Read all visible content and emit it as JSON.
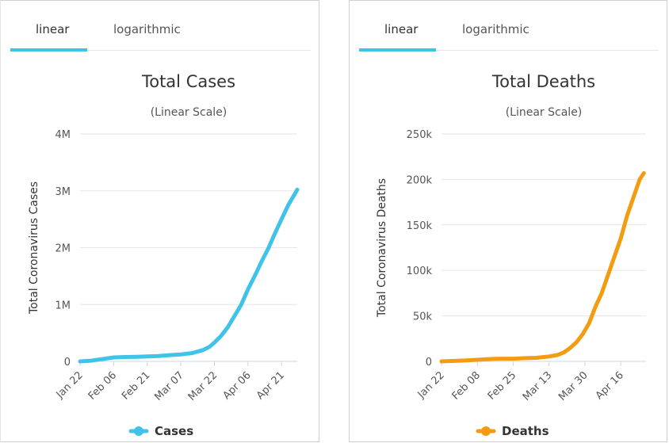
{
  "tabs": {
    "linear_label": "linear",
    "log_label": "logarithmic"
  },
  "legend_labels": {
    "cases": "Cases",
    "deaths": "Deaths"
  },
  "colors": {
    "cases": "#3fc3e8",
    "deaths": "#f39c12",
    "tab_active": "#3fc3e8"
  },
  "chart_data": [
    {
      "type": "line",
      "title": "Total Cases",
      "subtitle": "(Linear Scale)",
      "ylabel": "Total Coronavirus Cases",
      "ylim": [
        0,
        4000000
      ],
      "yticks": [
        "0",
        "1M",
        "2M",
        "3M",
        "4M"
      ],
      "ytick_values": [
        0,
        1000000,
        2000000,
        3000000,
        4000000
      ],
      "xticks": [
        "Jan 22",
        "Feb 06",
        "Feb 21",
        "Mar 07",
        "Mar 22",
        "Apr 06",
        "Apr 21"
      ],
      "xtick_index": [
        0,
        15,
        30,
        45,
        60,
        75,
        90
      ],
      "grid": true,
      "legend_position": "bottom",
      "series": [
        {
          "name": "Cases",
          "x": [
            0,
            5,
            10,
            15,
            20,
            25,
            28,
            30,
            35,
            40,
            45,
            50,
            55,
            58,
            60,
            63,
            66,
            69,
            72,
            75,
            78,
            81,
            84,
            87,
            90,
            93,
            96,
            97
          ],
          "values": [
            580,
            12000,
            40000,
            69000,
            76000,
            80000,
            84000,
            86000,
            95000,
            110000,
            122000,
            145000,
            200000,
            260000,
            330000,
            450000,
            600000,
            800000,
            1000000,
            1270000,
            1500000,
            1750000,
            1980000,
            2250000,
            2500000,
            2750000,
            2950000,
            3020000
          ]
        }
      ]
    },
    {
      "type": "line",
      "title": "Total Deaths",
      "subtitle": "(Linear Scale)",
      "ylabel": "Total Coronavirus Deaths",
      "ylim": [
        0,
        250000
      ],
      "yticks": [
        "0",
        "50k",
        "100k",
        "150k",
        "200k",
        "250k"
      ],
      "ytick_values": [
        0,
        50000,
        100000,
        150000,
        200000,
        250000
      ],
      "xticks": [
        "Jan 22",
        "Feb 08",
        "Feb 25",
        "Mar 13",
        "Mar 30",
        "Apr 16"
      ],
      "xtick_index": [
        0,
        17,
        34,
        51,
        68,
        85
      ],
      "grid": true,
      "legend_position": "bottom",
      "series": [
        {
          "name": "Deaths",
          "x": [
            0,
            10,
            17,
            25,
            34,
            40,
            45,
            51,
            55,
            58,
            61,
            64,
            67,
            70,
            73,
            76,
            79,
            82,
            85,
            88,
            91,
            94,
            96
          ],
          "values": [
            17,
            900,
            1700,
            2900,
            3000,
            3600,
            3900,
            5400,
            7000,
            9800,
            14600,
            21000,
            30000,
            42000,
            60000,
            75000,
            95000,
            115000,
            135000,
            160000,
            180000,
            200000,
            207000
          ]
        }
      ]
    }
  ]
}
